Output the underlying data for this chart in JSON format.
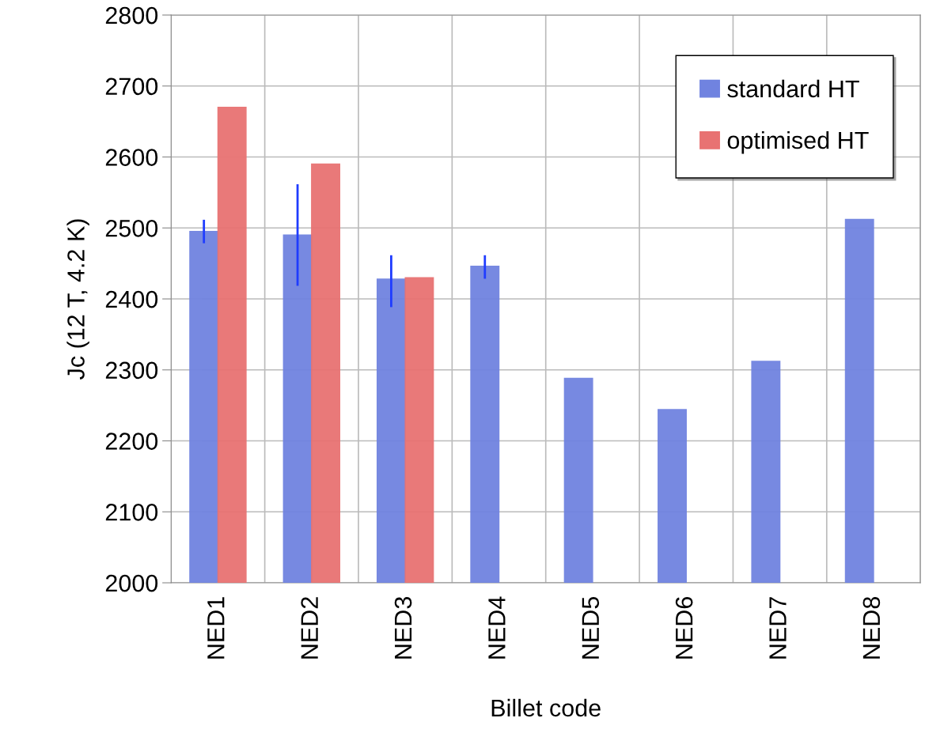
{
  "chart_data": {
    "type": "bar",
    "xlabel": "Billet code",
    "ylabel": "Jc (12 T, 4.2 K)",
    "categories": [
      "NED1",
      "NED2",
      "NED3",
      "NED4",
      "NED5",
      "NED6",
      "NED7",
      "NED8"
    ],
    "series": [
      {
        "name": "standard HT",
        "color": "#7083e0",
        "values": [
          2495,
          2490,
          2428,
          2446,
          2288,
          2244,
          2312,
          2512
        ],
        "errors": [
          [
            2480,
            2510
          ],
          [
            2420,
            2560
          ],
          [
            2390,
            2460
          ],
          [
            2430,
            2460
          ],
          null,
          null,
          null,
          null
        ]
      },
      {
        "name": "optimised HT",
        "color": "#e87272",
        "values": [
          2670,
          2590,
          2430,
          null,
          null,
          null,
          null,
          null
        ]
      }
    ],
    "ylim": [
      2000,
      2800
    ],
    "yticks": [
      2000,
      2100,
      2200,
      2300,
      2400,
      2500,
      2600,
      2700,
      2800
    ],
    "grid": true,
    "legend": "top right"
  }
}
